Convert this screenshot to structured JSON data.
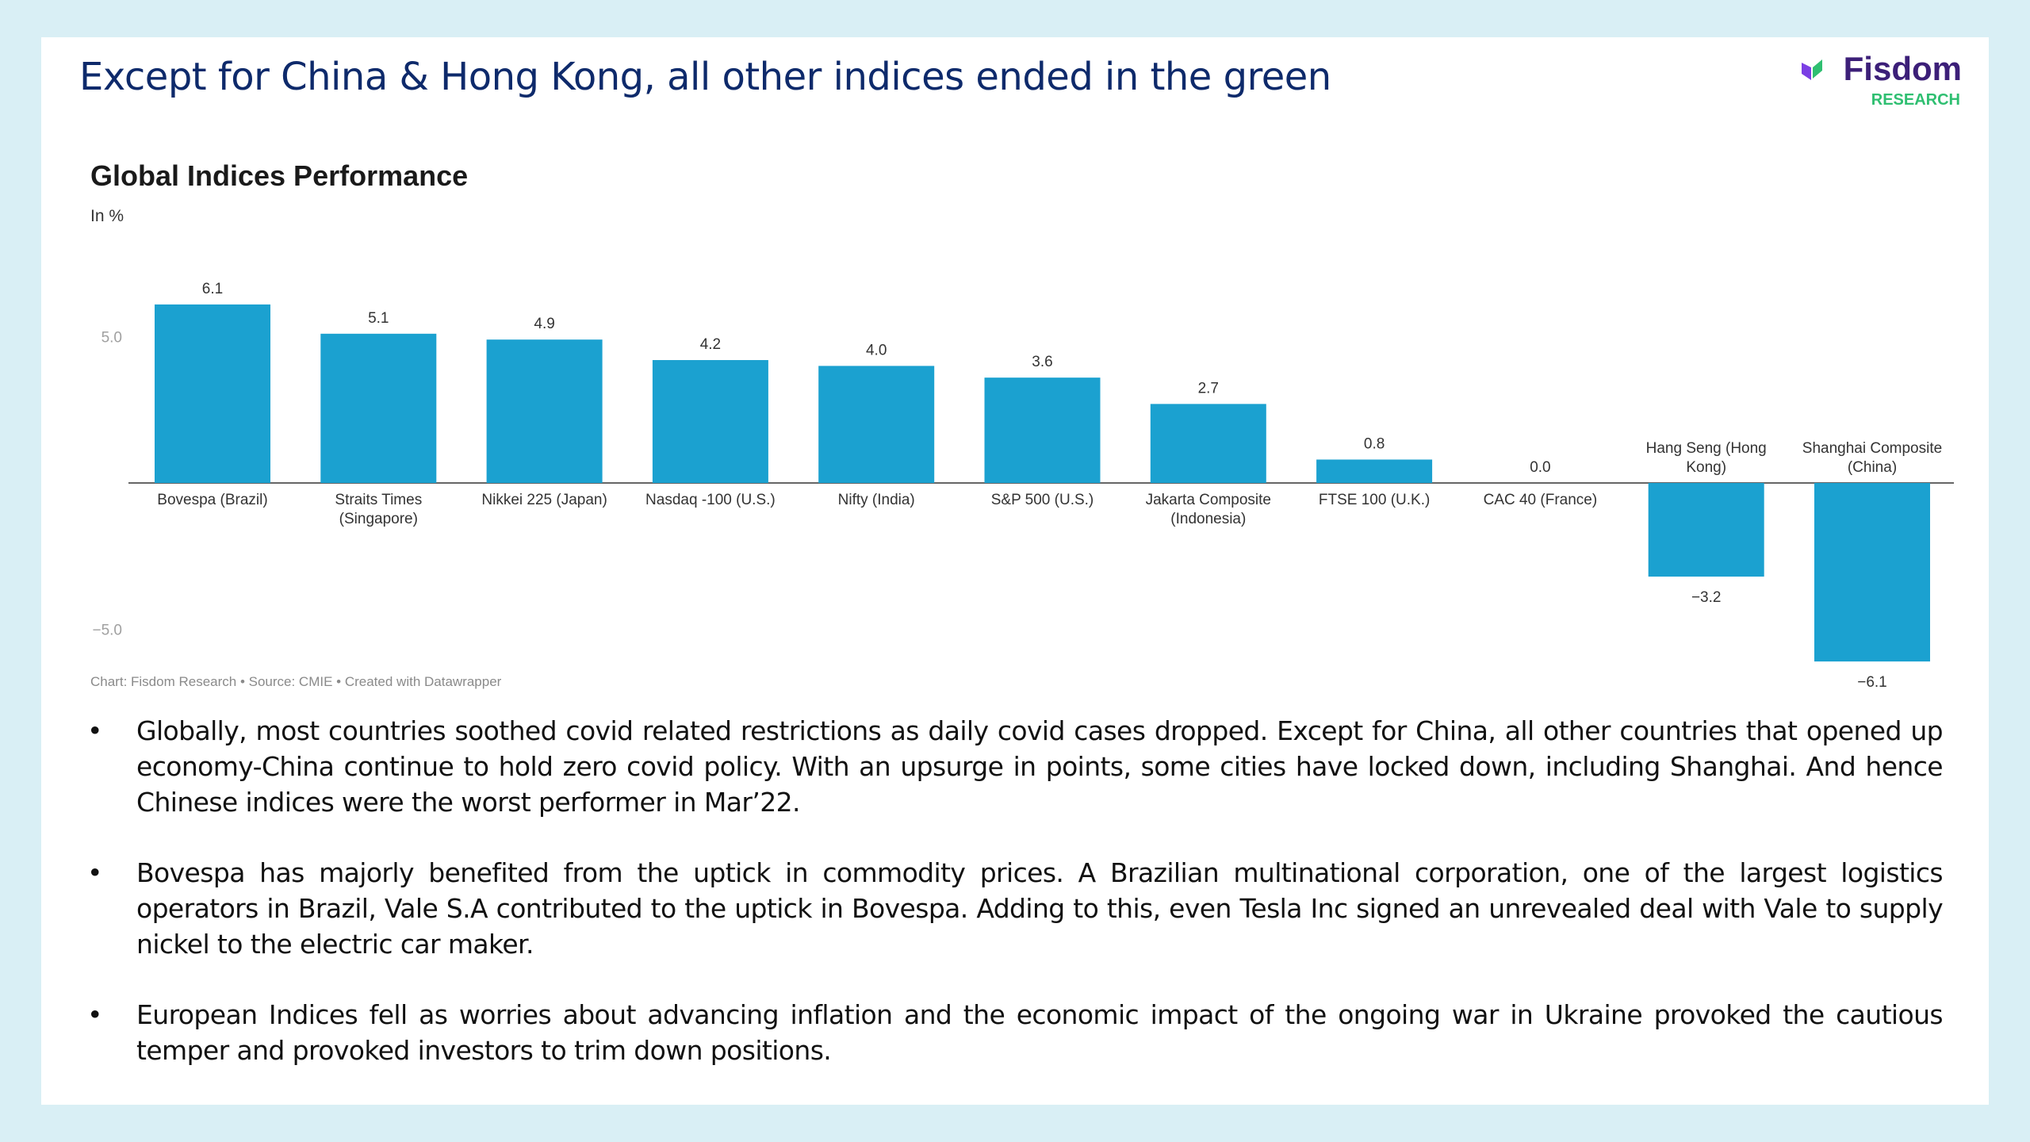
{
  "headline": "Except for China & Hong Kong, all other indices ended in the green",
  "logo": {
    "word": "Fisdom",
    "sub": "RESEARCH"
  },
  "chart_data": {
    "type": "bar",
    "title": "Global Indices Performance",
    "ylabel": "In %",
    "ylim": [
      -6.1,
      6.1
    ],
    "yticks": [
      5.0,
      -5.0
    ],
    "ytick_labels": [
      "5.0",
      "−5.0"
    ],
    "categories": [
      [
        "Bovespa (Brazil)"
      ],
      [
        "Straits Times",
        "(Singapore)"
      ],
      [
        "Nikkei 225 (Japan)"
      ],
      [
        "Nasdaq -100 (U.S.)"
      ],
      [
        "Nifty (India)"
      ],
      [
        "S&P 500 (U.S.)"
      ],
      [
        "Jakarta Composite",
        "(Indonesia)"
      ],
      [
        "FTSE 100 (U.K.)"
      ],
      [
        "CAC 40 (France)"
      ],
      [
        "Hang Seng (Hong",
        "Kong)"
      ],
      [
        "Shanghai Composite",
        "(China)"
      ]
    ],
    "values": [
      6.1,
      5.1,
      4.9,
      4.2,
      4.0,
      3.6,
      2.7,
      0.8,
      0.0,
      -3.2,
      -6.1
    ],
    "value_labels": [
      "6.1",
      "5.1",
      "4.9",
      "4.2",
      "4.0",
      "3.6",
      "2.7",
      "0.8",
      "0.0",
      "−3.2",
      "−6.1"
    ],
    "bar_color": "#1ba1d0",
    "grid": false
  },
  "source": "Chart: Fisdom Research • Source: CMIE • Created with Datawrapper",
  "bullets": [
    "Globally, most countries soothed covid related restrictions as daily covid cases dropped. Except for China, all other countries that opened up economy-China continue to hold zero covid policy. With an upsurge in points, some cities have locked down, including Shanghai. And hence Chinese indices were the worst performer in Mar’22.",
    "Bovespa has majorly benefited from the uptick in commodity prices. A Brazilian multinational corporation, one of the largest logistics operators in Brazil, Vale S.A contributed to the uptick in Bovespa. Adding to this, even Tesla Inc signed an unrevealed deal with Vale to supply nickel to the electric car maker.",
    "European Indices fell as worries about advancing inflation and the economic impact of the ongoing war in Ukraine provoked the cautious temper and provoked investors to trim down positions."
  ],
  "bullet_symbol": "•"
}
